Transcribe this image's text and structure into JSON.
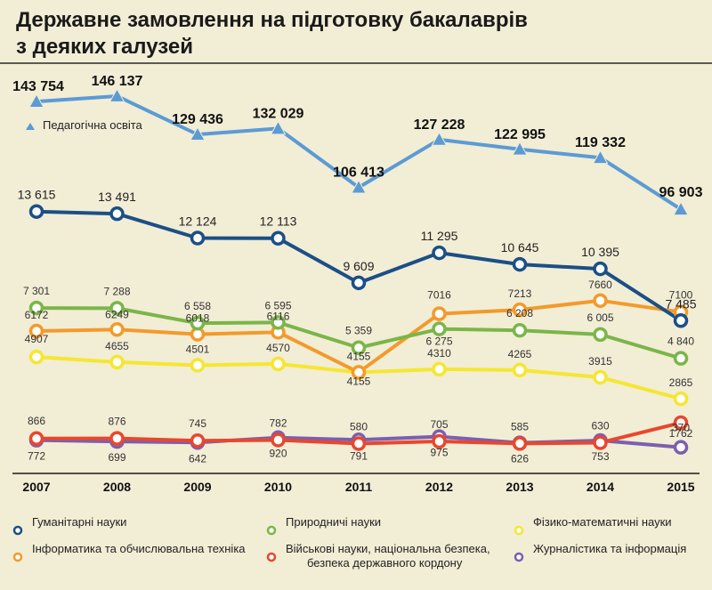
{
  "chart_data": {
    "type": "line",
    "title": "Державне замовлення на підготовку бакалаврів з деяких галузей",
    "title_lines": [
      "Державне замовлення на підготовку бакалаврів",
      "з деяких галузей"
    ],
    "categories": [
      "2007",
      "2008",
      "2009",
      "2010",
      "2011",
      "2012",
      "2013",
      "2014",
      "2015"
    ],
    "xlabel": "",
    "ylabel": "",
    "grid": false,
    "ped_series": {
      "name": "Педагогічна освіта",
      "color": "#5b9bd5",
      "marker": "triangle",
      "values": [
        143754,
        146137,
        129436,
        132029,
        106413,
        127228,
        122995,
        119332,
        96903
      ],
      "labels": [
        "143 754",
        "146 137",
        "129 436",
        "132 029",
        "106 413",
        "127 228",
        "122 995",
        "119 332",
        "96 903"
      ],
      "ylim": [
        90000,
        150000
      ]
    },
    "series": [
      {
        "id": "hum",
        "name": "Гуманітарні науки",
        "color": "#1b4f86",
        "values": [
          13615,
          13491,
          12124,
          12113,
          9609,
          11295,
          10645,
          10395,
          7485
        ],
        "labels": [
          "13 615",
          "13 491",
          "12 124",
          "12 113",
          "9 609",
          "11 295",
          "10 645",
          "10 395",
          "7 485"
        ],
        "ylim": [
          7000,
          14000
        ]
      },
      {
        "id": "nat",
        "name": "Природничі науки",
        "color": "#7ab648",
        "values": [
          7301,
          7288,
          6558,
          6595,
          5359,
          6275,
          6208,
          6005,
          4840
        ],
        "labels": [
          "7 301",
          "7 288",
          "6 558",
          "6 595",
          "5 359",
          "6 275",
          "6 208",
          "6 005",
          "4 840"
        ],
        "ylim": [
          2000,
          8000
        ]
      },
      {
        "id": "inf",
        "name": "Інформатика та обчислювальна техніка",
        "color": "#f39a2b",
        "values": [
          6172,
          6249,
          6018,
          6116,
          4155,
          7016,
          7213,
          7660,
          7100
        ],
        "labels": [
          "6172",
          "6249",
          "6018",
          "6116",
          "4155",
          "7016",
          "7213",
          "7660",
          "7100"
        ],
        "ylim": [
          2000,
          8000
        ]
      },
      {
        "id": "phys",
        "name": "Фізико-математичні науки",
        "color": "#f5e631",
        "values": [
          4907,
          4655,
          4501,
          4570,
          4155,
          4310,
          4265,
          3915,
          2865
        ],
        "labels": [
          "4907",
          "4655",
          "4501",
          "4570",
          "4155",
          "4310",
          "4265",
          "3915",
          "2865"
        ],
        "ylim": [
          2000,
          8000
        ]
      },
      {
        "id": "mil",
        "name": "Військові науки, національна безпека, безпека державного кордону",
        "color": "#e8472e",
        "values": [
          866,
          876,
          745,
          782,
          580,
          705,
          585,
          630,
          1762
        ],
        "labels": [
          "866",
          "876",
          "745",
          "782",
          "580",
          "705",
          "585",
          "630",
          "1762"
        ],
        "ylim": [
          0,
          7000
        ]
      },
      {
        "id": "jour",
        "name": "Журналістика та інформація",
        "color": "#7b5fb0",
        "values": [
          772,
          699,
          642,
          920,
          791,
          975,
          626,
          753,
          370
        ],
        "labels": [
          "772",
          "699",
          "642",
          "920",
          "791",
          "975",
          "626",
          "753",
          "370"
        ],
        "ylim": [
          0,
          7000
        ]
      }
    ],
    "legend": [
      {
        "series": "hum",
        "lines": [
          "Гуманітарні науки"
        ]
      },
      {
        "series": "nat",
        "lines": [
          "Природничі науки"
        ]
      },
      {
        "series": "phys",
        "lines": [
          "Фізико-математичні науки"
        ]
      },
      {
        "series": "inf",
        "lines": [
          "Інформатика та обчислювальна техніка"
        ]
      },
      {
        "series": "mil",
        "lines": [
          "Військові науки, національна безпека,",
          "безпека державного кордону"
        ]
      },
      {
        "series": "jour",
        "lines": [
          "Журналістика та інформація"
        ]
      }
    ]
  }
}
